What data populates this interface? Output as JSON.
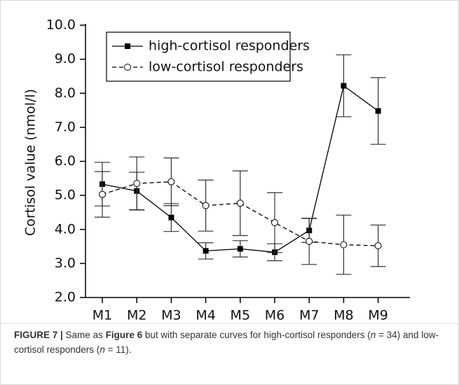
{
  "chart_data": {
    "type": "line",
    "ylabel": "Cortisol value (nmol/l)",
    "categories": [
      "M1",
      "M2",
      "M3",
      "M4",
      "M5",
      "M6",
      "M7",
      "M8",
      "M9"
    ],
    "series": [
      {
        "name": "high-cortisol responders",
        "color": "#000000",
        "marker": "filled-square",
        "dashed": false,
        "values": [
          5.33,
          5.13,
          4.35,
          3.37,
          3.43,
          3.33,
          3.97,
          8.22,
          7.48
        ],
        "errors": [
          0.64,
          0.55,
          0.41,
          0.24,
          0.24,
          0.25,
          0.35,
          0.91,
          0.98
        ]
      },
      {
        "name": "low-cortisol responders",
        "color": "#000000",
        "marker": "open-circle",
        "dashed": true,
        "values": [
          5.03,
          5.35,
          5.4,
          4.7,
          4.77,
          4.2,
          3.65,
          3.55,
          3.52
        ],
        "errors": [
          0.67,
          0.78,
          0.7,
          0.75,
          0.95,
          0.88,
          0.68,
          0.87,
          0.61
        ]
      }
    ],
    "ylim": [
      2.0,
      10.0
    ],
    "yticks": [
      {
        "value": 2,
        "label": "2.0"
      },
      {
        "value": 3,
        "label": "3.0"
      },
      {
        "value": 4,
        "label": "4.0"
      },
      {
        "value": 5,
        "label": "5.0"
      },
      {
        "value": 6,
        "label": "6.0"
      },
      {
        "value": 7,
        "label": "7.0"
      },
      {
        "value": 8,
        "label": "8.0"
      },
      {
        "value": 9,
        "label": "9.0"
      },
      {
        "value": 10,
        "label": "10.0"
      }
    ],
    "legend": "upper-left"
  },
  "caption": [
    "FIGURE 7 |",
    " Same as ",
    "Figure 6",
    " but with separate curves for high-cortisol responders (",
    "n",
    " = 34) and low-cortisol responders (",
    "n",
    " = 11)."
  ]
}
